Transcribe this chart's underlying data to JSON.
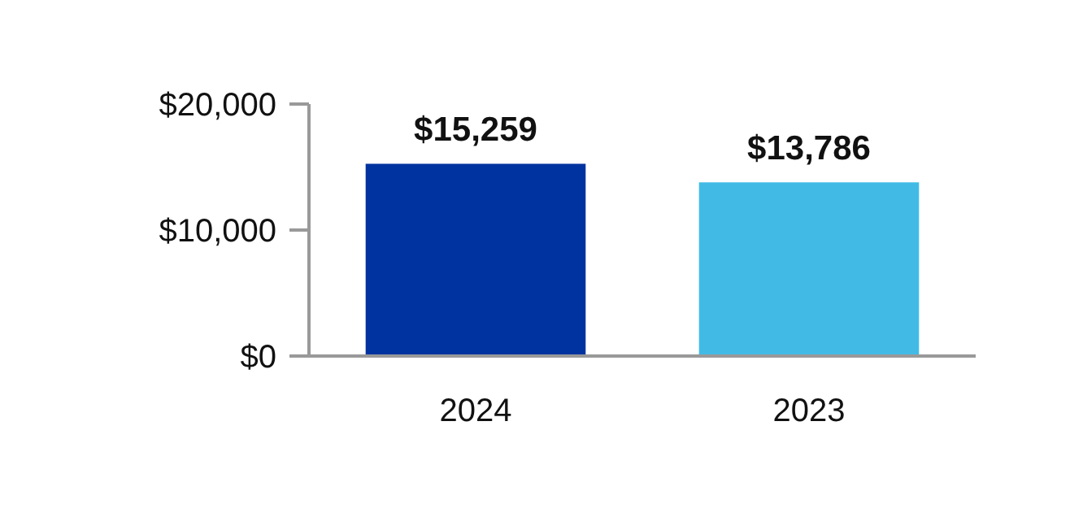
{
  "chart_data": {
    "type": "bar",
    "categories": [
      "2024",
      "2023"
    ],
    "values": [
      15259,
      13786
    ],
    "colors": [
      "#0033a0",
      "#41bbe6"
    ],
    "value_labels": [
      "$15,259",
      "$13,786"
    ],
    "ylim": [
      0,
      20000
    ],
    "yticks": [
      {
        "value": 0,
        "label": "$0"
      },
      {
        "value": 10000,
        "label": "$10,000"
      },
      {
        "value": 20000,
        "label": "$20,000"
      }
    ],
    "grid": false
  }
}
